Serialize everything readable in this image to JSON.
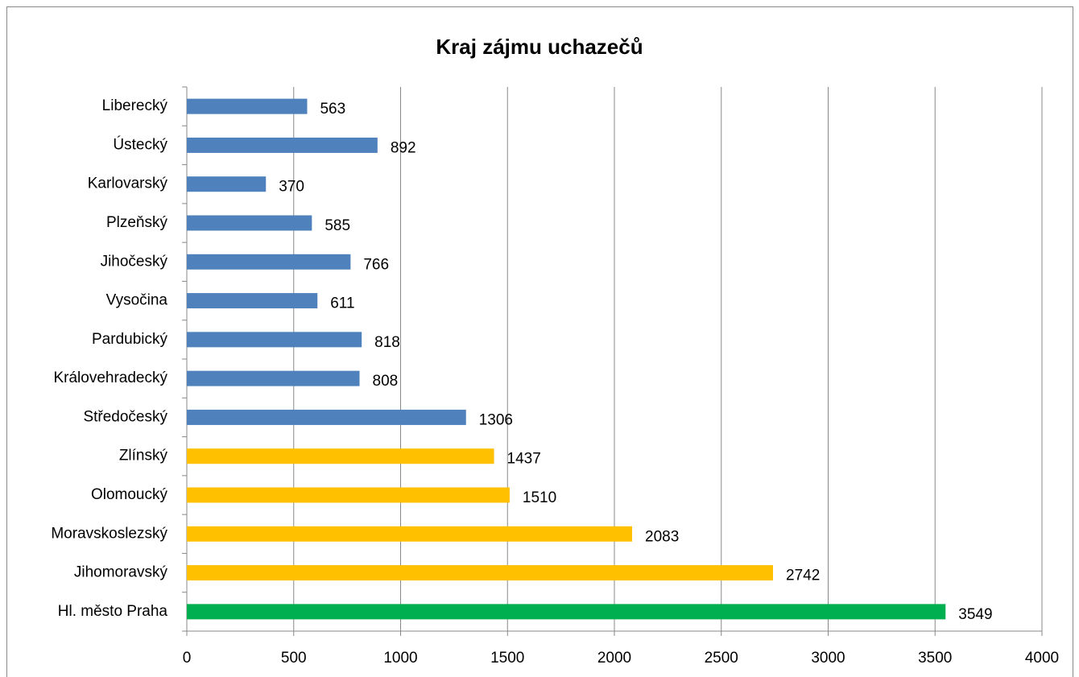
{
  "chart_data": {
    "type": "barh",
    "title": "Kraj zájmu uchazečů",
    "categories": [
      "Liberecký",
      "Ústecký",
      "Karlovarský",
      "Plzeňský",
      "Jihočeský",
      "Vysočina",
      "Pardubický",
      "Královehradecký",
      "Středočeský",
      "Zlínský",
      "Olomoucký",
      "Moravskoslezský",
      "Jihomoravský",
      "Hl. město Praha"
    ],
    "values": [
      563,
      892,
      370,
      585,
      766,
      611,
      818,
      808,
      1306,
      1437,
      1510,
      2083,
      2742,
      3549
    ],
    "colors": [
      "#4f81bd",
      "#4f81bd",
      "#4f81bd",
      "#4f81bd",
      "#4f81bd",
      "#4f81bd",
      "#4f81bd",
      "#4f81bd",
      "#4f81bd",
      "#ffc000",
      "#ffc000",
      "#ffc000",
      "#ffc000",
      "#00b050"
    ],
    "xlim": [
      0,
      4000
    ],
    "xticks": [
      0,
      500,
      1000,
      1500,
      2000,
      2500,
      3000,
      3500,
      4000
    ],
    "grid": true
  }
}
